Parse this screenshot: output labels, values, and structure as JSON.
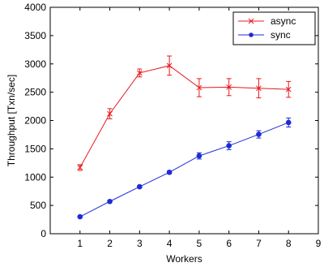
{
  "chart_data": {
    "type": "line",
    "xlabel": "Workers",
    "ylabel": "Throughput [Txn/sec]",
    "xlim": [
      0,
      9
    ],
    "ylim": [
      0,
      4000
    ],
    "x_ticks": [
      1,
      2,
      3,
      4,
      5,
      6,
      7,
      8,
      9
    ],
    "y_ticks": [
      0,
      500,
      1000,
      1500,
      2000,
      2500,
      3000,
      3500,
      4000
    ],
    "grid": false,
    "legend_position": "top-right",
    "x": [
      1,
      2,
      3,
      4,
      5,
      6,
      7,
      8
    ],
    "series": [
      {
        "name": "async",
        "color": "#e8191c",
        "marker": "x",
        "values": [
          1170,
          2120,
          2840,
          2970,
          2580,
          2590,
          2570,
          2550
        ],
        "errors": [
          50,
          90,
          70,
          170,
          160,
          150,
          170,
          140
        ]
      },
      {
        "name": "sync",
        "color": "#1f2bd6",
        "marker": "dot",
        "values": [
          300,
          570,
          830,
          1085,
          1375,
          1555,
          1755,
          1965
        ],
        "errors": [
          10,
          15,
          20,
          25,
          55,
          70,
          65,
          80
        ]
      }
    ]
  }
}
